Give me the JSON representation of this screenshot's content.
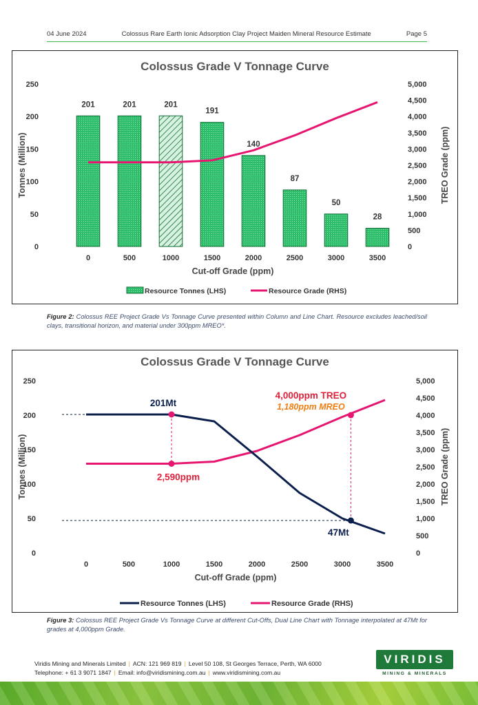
{
  "header": {
    "date": "04 June 2024",
    "title": "Colossus Rare Earth Ionic Adsorption Clay Project Maiden Mineral Resource Estimate",
    "page": "Page 5"
  },
  "caption1": {
    "label": "Figure 2:",
    "text": "Colossus REE Project Grade Vs Tonnage Curve presented within Column and Line Chart. Resource excludes leached/soil clays, transitional horizon, and material under 300ppm MREO*."
  },
  "caption2": {
    "label": "Figure 3:",
    "text": "Colossus REE Project Grade Vs Tonnage Curve at different Cut-Offs, Dual Line Chart with Tonnage interpolated at 47Mt for grades at 4,000ppm Grade."
  },
  "footer": {
    "company": "Viridis Mining and Minerals Limited",
    "acn": "ACN: 121 969 819",
    "address": "Level 50 108, St Georges Terrace, Perth, WA 6000",
    "phone": "Telephone: + 61 3 9071 1847",
    "email": "Email: info@viridismining.com.au",
    "web": "www.viridismining.com.au"
  },
  "logo": {
    "name": "VIRIDIS",
    "tagline": "MINING & MINERALS"
  },
  "colors": {
    "bar_fill": "#2ebd6b",
    "bar_stroke": "#0d6b32",
    "hatch_bg": "#d8f2e1",
    "tonnes_line": "#0b1f4d",
    "grade_line": "#e6156f",
    "header_rule": "#39b54a"
  },
  "chart_data": [
    {
      "type": "bar",
      "title": "Colossus Grade V Tonnage Curve",
      "xlabel": "Cut-off Grade (ppm)",
      "ylabel": "Tonnes (Million)",
      "y2label": "TREO Grade (ppm)",
      "categories": [
        "0",
        "500",
        "1000",
        "1500",
        "2000",
        "2500",
        "3000",
        "3500"
      ],
      "ylim": [
        0,
        250
      ],
      "y2lim": [
        0,
        5000
      ],
      "yticks": [
        "0",
        "50",
        "100",
        "150",
        "200",
        "250"
      ],
      "y2ticks": [
        "0",
        "500",
        "1,000",
        "1,500",
        "2,000",
        "2,500",
        "3,000",
        "3,500",
        "4,000",
        "4,500",
        "5,000"
      ],
      "highlighted_category": "1000",
      "series": [
        {
          "name": "Resource Tonnes (LHS)",
          "type": "bar",
          "axis": "left",
          "values": [
            201,
            201,
            201,
            191,
            140,
            87,
            50,
            28
          ],
          "labels": [
            "201",
            "201",
            "201",
            "191",
            "140",
            "87",
            "50",
            "28"
          ]
        },
        {
          "name": "Resource Grade (RHS)",
          "type": "line",
          "axis": "right",
          "values": [
            2590,
            2590,
            2590,
            2650,
            2960,
            3420,
            3950,
            4440
          ]
        }
      ],
      "legend": "bottom",
      "grid": false
    },
    {
      "type": "line",
      "title": "Colossus Grade V Tonnage Curve",
      "xlabel": "Cut-off Grade (ppm)",
      "ylabel": "Tonnes (Million)",
      "y2label": "TREO Grade (ppm)",
      "categories": [
        "0",
        "500",
        "1000",
        "1500",
        "2000",
        "2500",
        "3000",
        "3500"
      ],
      "ylim": [
        0,
        250
      ],
      "y2lim": [
        0,
        5000
      ],
      "yticks": [
        "0",
        "50",
        "100",
        "150",
        "200",
        "250"
      ],
      "y2ticks": [
        "0",
        "500",
        "1,000",
        "1,500",
        "2,000",
        "2,500",
        "3,000",
        "3,500",
        "4,000",
        "4,500",
        "5,000"
      ],
      "series": [
        {
          "name": "Resource Tonnes (LHS)",
          "axis": "left",
          "values": [
            201,
            201,
            201,
            191,
            140,
            87,
            50,
            28
          ]
        },
        {
          "name": "Resource Grade (RHS)",
          "axis": "right",
          "values": [
            2590,
            2590,
            2590,
            2650,
            2960,
            3420,
            3950,
            4440
          ]
        }
      ],
      "annotations": [
        {
          "text": "201Mt",
          "x": 1000,
          "y": 201,
          "axis": "left"
        },
        {
          "text": "2,590ppm",
          "x": 1000,
          "y": 2590,
          "axis": "right"
        },
        {
          "text": "47Mt",
          "x": 3100,
          "y": 47,
          "axis": "left"
        },
        {
          "text": "4,000ppm TREO",
          "x": 3100,
          "y": 4000,
          "axis": "right"
        },
        {
          "text": "1,180ppm MREO",
          "x": 3100,
          "y": 4000,
          "axis": "right"
        }
      ],
      "legend": "bottom",
      "grid": false
    }
  ]
}
